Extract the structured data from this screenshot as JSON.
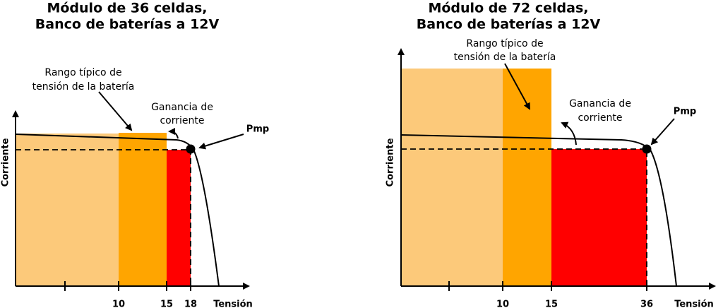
{
  "panels": [
    {
      "title": [
        "Módulo de 36 celdas,",
        "Banco de baterías a 12V"
      ],
      "range_note": [
        "Rango típico de",
        "tensión de la batería"
      ],
      "gain_note": [
        "Ganancia de",
        "corriente"
      ],
      "point_label": "Pmp",
      "y_label": "Corriente",
      "x_label": "Tensión",
      "x_ticks": [
        10,
        15,
        18
      ]
    },
    {
      "title": [
        "Módulo de 72 celdas,",
        "Banco de baterías a 12V"
      ],
      "range_note": [
        "Rango típico de",
        "tensión de la batería"
      ],
      "gain_note": [
        "Ganancia de",
        "corriente"
      ],
      "point_label": "Pmp",
      "y_label": "Corriente",
      "x_label": "Tensión",
      "x_ticks": [
        10,
        15,
        36
      ]
    }
  ]
}
